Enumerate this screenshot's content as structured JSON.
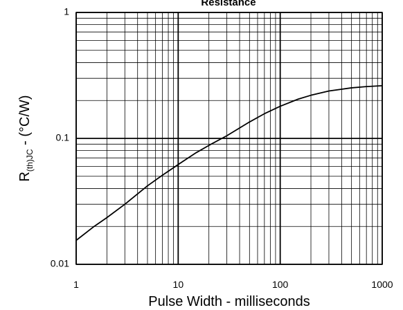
{
  "chart_data": {
    "type": "line",
    "title": "Resistance",
    "xlabel": "Pulse Width - milliseconds",
    "ylabel_main": "R",
    "ylabel_sub": "(th)JC",
    "ylabel_rest": " - (°C/W)",
    "x_scale": "log",
    "y_scale": "log",
    "xlim": [
      1,
      1000
    ],
    "ylim": [
      0.01,
      1
    ],
    "x_ticks": [
      1,
      10,
      100,
      1000
    ],
    "x_tick_labels": [
      "1",
      "10",
      "100",
      "1000"
    ],
    "y_ticks": [
      0.01,
      0.1,
      1
    ],
    "y_tick_labels": [
      "0.01",
      "0.1",
      "1"
    ],
    "grid": true,
    "series": [
      {
        "x": [
          1,
          1.5,
          2,
          3,
          5,
          7,
          10,
          15,
          20,
          30,
          50,
          70,
          100,
          150,
          200,
          300,
          500,
          700,
          1000
        ],
        "y": [
          0.0155,
          0.02,
          0.0235,
          0.03,
          0.042,
          0.051,
          0.062,
          0.077,
          0.088,
          0.105,
          0.135,
          0.157,
          0.18,
          0.205,
          0.22,
          0.238,
          0.252,
          0.258,
          0.262
        ]
      }
    ]
  }
}
